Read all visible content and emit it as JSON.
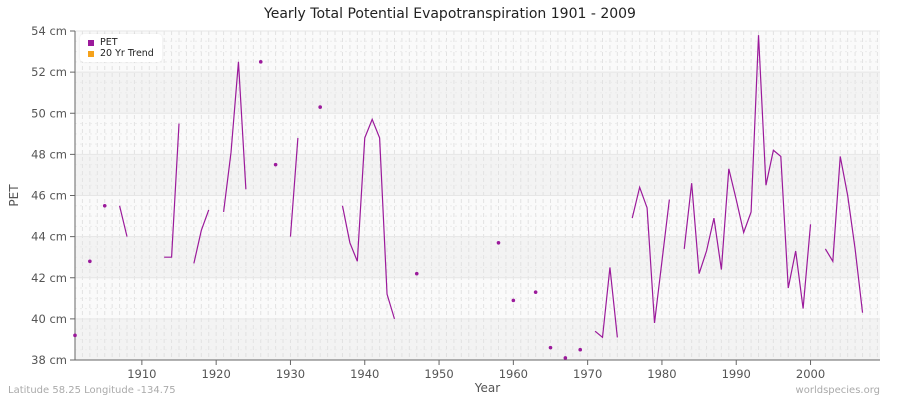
{
  "title": "Yearly Total Potential Evapotranspiration 1901 - 2009",
  "footer": {
    "location": "Latitude 58.25 Longitude -134.75",
    "source": "worldspecies.org"
  },
  "legend": [
    {
      "label": "PET",
      "color": "#9b1a9b"
    },
    {
      "label": "20 Yr Trend",
      "color": "#f5a21b"
    }
  ],
  "chart_data": {
    "type": "line",
    "title": "Yearly Total Potential Evapotranspiration 1901 - 2009",
    "xlabel": "Year",
    "ylabel": "PET",
    "xlim": [
      1901,
      2009
    ],
    "ylim": [
      38,
      54
    ],
    "x_ticks": [
      1910,
      1920,
      1930,
      1940,
      1950,
      1960,
      1970,
      1980,
      1990,
      2000
    ],
    "y_ticks": [
      38,
      40,
      42,
      44,
      46,
      48,
      50,
      52,
      54
    ],
    "y_tick_labels": [
      "38 cm",
      "40 cm",
      "42 cm",
      "44 cm",
      "46 cm",
      "48 cm",
      "50 cm",
      "52 cm",
      "54 cm"
    ],
    "grid": true,
    "legend_position": "top-left",
    "series": [
      {
        "name": "PET",
        "color": "#9b1a9b",
        "points": [
          [
            1901,
            39.2
          ],
          [
            1903,
            42.8
          ],
          [
            1905,
            45.5
          ],
          [
            1907,
            45.5
          ],
          [
            1908,
            44.0
          ],
          [
            1913,
            43.0
          ],
          [
            1914,
            43.0
          ],
          [
            1915,
            49.5
          ],
          [
            1917,
            42.7
          ],
          [
            1918,
            44.3
          ],
          [
            1919,
            45.3
          ],
          [
            1921,
            45.2
          ],
          [
            1922,
            48.1
          ],
          [
            1923,
            52.5
          ],
          [
            1924,
            46.3
          ],
          [
            1926,
            52.5
          ],
          [
            1928,
            47.5
          ],
          [
            1930,
            44.0
          ],
          [
            1931,
            48.8
          ],
          [
            1934,
            50.3
          ],
          [
            1937,
            45.5
          ],
          [
            1938,
            43.7
          ],
          [
            1939,
            42.8
          ],
          [
            1940,
            48.8
          ],
          [
            1941,
            49.7
          ],
          [
            1942,
            48.8
          ],
          [
            1943,
            41.2
          ],
          [
            1944,
            40.0
          ],
          [
            1947,
            42.2
          ],
          [
            1958,
            43.7
          ],
          [
            1960,
            40.9
          ],
          [
            1963,
            41.3
          ],
          [
            1965,
            38.6
          ],
          [
            1967,
            38.1
          ],
          [
            1969,
            38.5
          ],
          [
            1971,
            39.4
          ],
          [
            1972,
            39.1
          ],
          [
            1973,
            42.5
          ],
          [
            1974,
            39.1
          ],
          [
            1976,
            44.9
          ],
          [
            1977,
            46.4
          ],
          [
            1978,
            45.4
          ],
          [
            1979,
            39.8
          ],
          [
            1980,
            42.8
          ],
          [
            1981,
            45.8
          ],
          [
            1983,
            43.4
          ],
          [
            1984,
            46.6
          ],
          [
            1985,
            42.2
          ],
          [
            1986,
            43.3
          ],
          [
            1987,
            44.9
          ],
          [
            1988,
            42.4
          ],
          [
            1989,
            47.3
          ],
          [
            1990,
            45.8
          ],
          [
            1991,
            44.2
          ],
          [
            1992,
            45.2
          ],
          [
            1993,
            53.8
          ],
          [
            1994,
            46.5
          ],
          [
            1995,
            48.2
          ],
          [
            1996,
            47.9
          ],
          [
            1997,
            41.5
          ],
          [
            1998,
            43.3
          ],
          [
            1999,
            40.5
          ],
          [
            2000,
            44.6
          ],
          [
            2002,
            43.4
          ],
          [
            2003,
            42.8
          ],
          [
            2004,
            47.9
          ],
          [
            2005,
            46.0
          ],
          [
            2006,
            43.4
          ],
          [
            2007,
            40.3
          ]
        ]
      },
      {
        "name": "20 Yr Trend",
        "color": "#f5a21b",
        "points": []
      }
    ]
  }
}
